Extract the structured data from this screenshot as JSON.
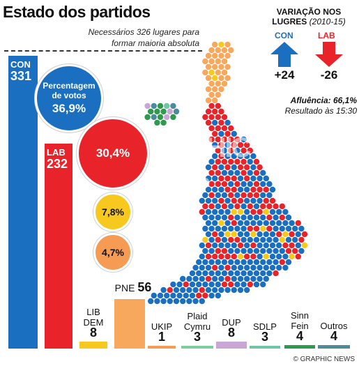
{
  "header": {
    "title": "Estado dos partidos",
    "subtitle_line1": "Necessários 326 lugares para",
    "subtitle_line2": "formar maioria absoluta"
  },
  "legend": {
    "line1": "VARIAÇÃO NOS",
    "line2": "LUGRES",
    "years": "(2010-15)",
    "con_label": "CON",
    "con_change": "+24",
    "lab_label": "LAB",
    "lab_change": "-26"
  },
  "turnout": {
    "line1": "Afluência: 66,1%",
    "line2": "Resultado às 15:30"
  },
  "bubbles": {
    "intro": "Percentagem de votos",
    "con": "36,9%",
    "lab": "30,4%",
    "lib": "7,8%",
    "ukip": "4,7%"
  },
  "credit": "© GRAPHIC NEWS",
  "watermark": "GRAPHIC NEWS",
  "colors": {
    "con": "#1a6fc0",
    "lab": "#e8242a",
    "lib": "#f7c81e",
    "ukip": "#f59b54",
    "snp": "#f7a85c",
    "plaid": "#7ccf9c",
    "dup": "#c9a6d6",
    "sdlp": "#6fc6a5",
    "sinnfein": "#2d9a4d",
    "others": "#4d8a9b"
  },
  "chart_data": {
    "type": "bar",
    "title": "Estado dos partidos",
    "majority_line": 326,
    "categories": [
      "CON",
      "LAB",
      "LIB DEM",
      "PNE",
      "UKIP",
      "Plaid Cymru",
      "DUP",
      "SDLP",
      "Sinn Fein",
      "Outros"
    ],
    "values": [
      331,
      232,
      8,
      56,
      1,
      3,
      8,
      3,
      4,
      4
    ],
    "vote_share": {
      "CON": "36,9%",
      "LAB": "30,4%",
      "LIB DEM": "7,8%",
      "UKIP": "4,7%"
    },
    "seat_change": {
      "CON": "+24",
      "LAB": "-26"
    },
    "ylim": [
      0,
      331
    ]
  }
}
